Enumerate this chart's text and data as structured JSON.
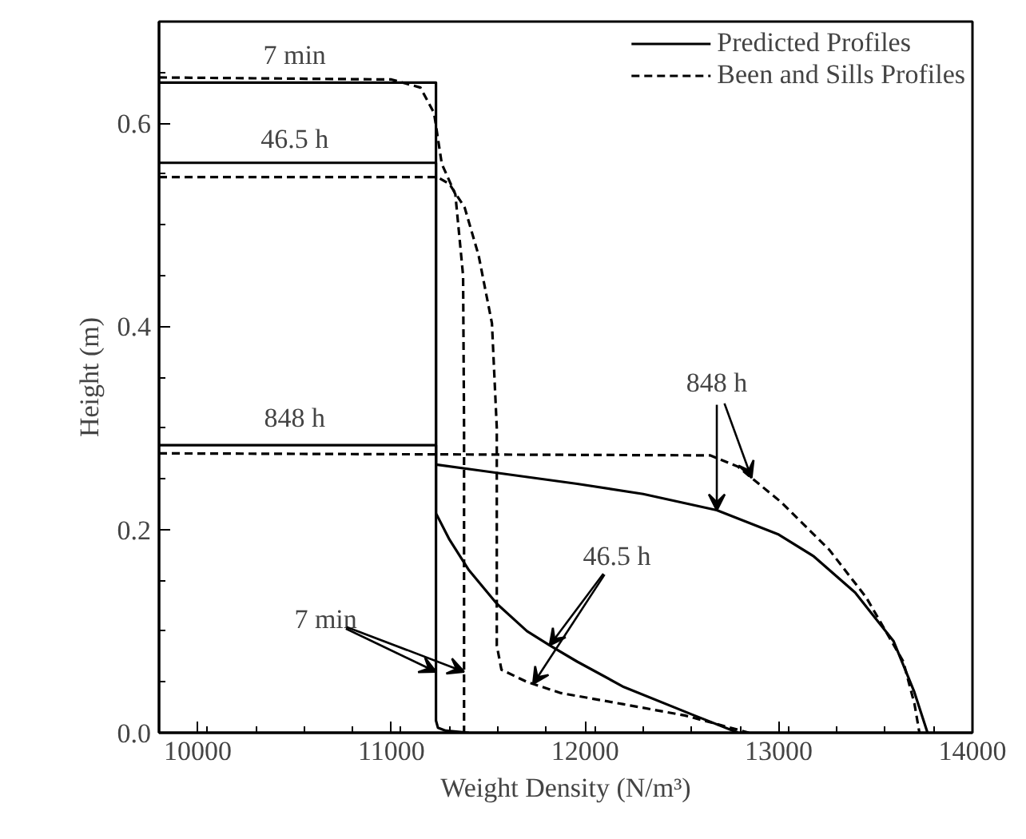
{
  "chart_data": {
    "type": "line",
    "xlabel": "Weight Density (N/m³)",
    "ylabel": "Height (m)",
    "xlim": [
      9800,
      14000
    ],
    "ylim": [
      0,
      0.7
    ],
    "xticks": [
      10000,
      11000,
      12000,
      13000,
      14000
    ],
    "yticks": [
      {
        "value": 0,
        "label": "0.0"
      },
      0.2,
      0.4,
      0.6
    ],
    "grid": false,
    "legend": "top right",
    "marker": "none",
    "series": [
      {
        "name": "Predicted Profiles",
        "color": "#000000",
        "line_style": "solid",
        "x": [
          9800,
          11230,
          11230,
          11240,
          11280,
          11400
        ],
        "values": [
          0.64,
          0.64,
          0.012,
          0.005,
          0.002,
          0.0
        ]
      },
      {
        "color": "#000000",
        "line_style": "solid",
        "x": [
          9800,
          11230,
          11230,
          11300,
          11400,
          11544,
          11700,
          11817,
          11959,
          12200,
          12564,
          12790
        ],
        "values": [
          0.561,
          0.561,
          0.216,
          0.19,
          0.16,
          0.127,
          0.1,
          0.086,
          0.07,
          0.045,
          0.017,
          0.0
        ]
      },
      {
        "color": "#000000",
        "line_style": "solid",
        "x": [
          9800,
          11230,
          11230,
          11461,
          11959,
          12300,
          12680,
          13000,
          13178,
          13394,
          13593,
          13700,
          13768
        ],
        "values": [
          0.283,
          0.283,
          0.264,
          0.258,
          0.245,
          0.235,
          0.219,
          0.195,
          0.174,
          0.138,
          0.09,
          0.04,
          0.0
        ]
      },
      {
        "name": "Been and Sills Profiles",
        "color": "#000000",
        "line_style": "dashed",
        "x": [
          9800,
          11000,
          11150,
          11220,
          11260,
          11330,
          11370,
          11375,
          11375
        ],
        "values": [
          0.645,
          0.643,
          0.635,
          0.61,
          0.56,
          0.53,
          0.45,
          0.3,
          0.0
        ]
      },
      {
        "color": "#000000",
        "line_style": "dashed",
        "x": [
          9800,
          11237,
          11300,
          11378,
          11450,
          11519,
          11544,
          11544,
          11568,
          11700,
          11876,
          12200,
          12515,
          12846
        ],
        "values": [
          0.547,
          0.547,
          0.54,
          0.517,
          0.47,
          0.403,
          0.3,
          0.086,
          0.062,
          0.05,
          0.039,
          0.028,
          0.017,
          0.0
        ]
      },
      {
        "color": "#000000",
        "line_style": "dashed",
        "x": [
          9800,
          12647,
          12788,
          13012,
          13261,
          13452,
          13643,
          13701,
          13726
        ],
        "values": [
          0.275,
          0.273,
          0.262,
          0.227,
          0.18,
          0.133,
          0.07,
          0.028,
          0.0
        ]
      }
    ],
    "annotations": [
      {
        "text": "7 min",
        "x": 10500,
        "y": 0.64
      },
      {
        "text": "46.5 h",
        "x": 10500,
        "y": 0.561
      },
      {
        "text": "848 h",
        "x": 10500,
        "y": 0.283
      },
      {
        "text": "848 h",
        "x": 12680,
        "y": 0.219
      },
      {
        "text": "46.5 h",
        "x": 11817,
        "y": 0.086
      },
      {
        "text": "7 min",
        "x": 11230,
        "y": 0.06
      }
    ]
  }
}
